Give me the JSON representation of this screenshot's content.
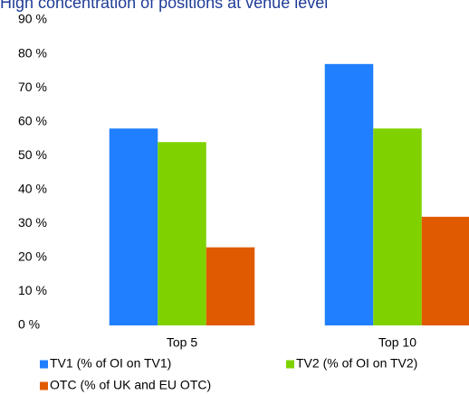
{
  "chart_data": {
    "type": "bar",
    "title": "High concentration of positions at venue level",
    "categories": [
      "Top 5",
      "Top 10"
    ],
    "series": [
      {
        "name": "TV1 (% of OI on TV1)",
        "color": "#1f7fff",
        "values": [
          58,
          77
        ]
      },
      {
        "name": "TV2 (% of OI on TV2)",
        "color": "#7fd200",
        "values": [
          54,
          58
        ]
      },
      {
        "name": "OTC (% of UK and EU OTC)",
        "color": "#e05a00",
        "values": [
          23,
          32
        ]
      }
    ],
    "ylim": [
      0,
      90
    ],
    "yticks": [
      {
        "value": 0,
        "label": "0 %"
      },
      {
        "value": 10,
        "label": "10 %"
      },
      {
        "value": 20,
        "label": "20 %"
      },
      {
        "value": 30,
        "label": "30 %"
      },
      {
        "value": 40,
        "label": "40 %"
      },
      {
        "value": 50,
        "label": "50 %"
      },
      {
        "value": 60,
        "label": "60 %"
      },
      {
        "value": 70,
        "label": "70 %"
      },
      {
        "value": 80,
        "label": "80 %"
      },
      {
        "value": 90,
        "label": "90 %"
      }
    ],
    "grid": false,
    "legend": "bottom"
  }
}
